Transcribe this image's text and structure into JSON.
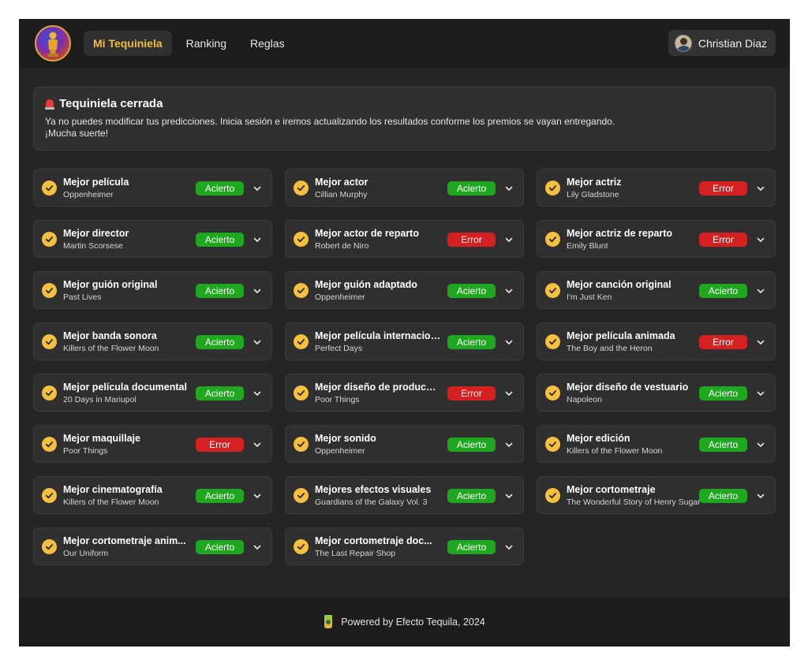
{
  "header": {
    "nav": [
      {
        "label": "Mi Tequiniela",
        "active": true
      },
      {
        "label": "Ranking",
        "active": false
      },
      {
        "label": "Reglas",
        "active": false
      }
    ],
    "user_name": "Christian Diaz"
  },
  "alert": {
    "title": "Tequiniela cerrada",
    "text": "Ya no puedes modificar tus predicciones. Inicia sesión e iremos actualizando los resultados conforme los premios se vayan entregando. ¡Mucha suerte!"
  },
  "categories": [
    {
      "title": "Mejor película",
      "pick": "Oppenheimer",
      "result": "Acierto"
    },
    {
      "title": "Mejor actor",
      "pick": "Cillian Murphy",
      "result": "Acierto"
    },
    {
      "title": "Mejor actriz",
      "pick": "Lily Gladstone",
      "result": "Error"
    },
    {
      "title": "Mejor director",
      "pick": "Martin Scorsese",
      "result": "Acierto"
    },
    {
      "title": "Mejor actor de reparto",
      "pick": "Robert de Niro",
      "result": "Error"
    },
    {
      "title": "Mejor actriz de reparto",
      "pick": "Emily Blunt",
      "result": "Error"
    },
    {
      "title": "Mejor guión original",
      "pick": "Past Lives",
      "result": "Acierto"
    },
    {
      "title": "Mejor guión adaptado",
      "pick": "Oppenheimer",
      "result": "Acierto"
    },
    {
      "title": "Mejor canción original",
      "pick": "I'm Just Ken",
      "result": "Acierto"
    },
    {
      "title": "Mejor banda sonora",
      "pick": "Killers of the Flower Moon",
      "result": "Acierto"
    },
    {
      "title": "Mejor película internacional",
      "pick": "Perfect Days",
      "result": "Acierto"
    },
    {
      "title": "Mejor película animada",
      "pick": "The Boy and the Heron",
      "result": "Error"
    },
    {
      "title": "Mejor película documental",
      "pick": "20 Days in Mariupol",
      "result": "Acierto"
    },
    {
      "title": "Mejor diseño de producción",
      "pick": "Poor Things",
      "result": "Error"
    },
    {
      "title": "Mejor diseño de vestuario",
      "pick": "Napoleon",
      "result": "Acierto"
    },
    {
      "title": "Mejor maquillaje",
      "pick": "Poor Things",
      "result": "Error"
    },
    {
      "title": "Mejor sonido",
      "pick": "Oppenheimer",
      "result": "Acierto"
    },
    {
      "title": "Mejor edición",
      "pick": "Killers of the Flower Moon",
      "result": "Acierto"
    },
    {
      "title": "Mejor cinematografía",
      "pick": "Killers of the Flower Moon",
      "result": "Acierto"
    },
    {
      "title": "Mejores efectos visuales",
      "pick": "Guardians of the Galaxy Vol. 3",
      "result": "Acierto"
    },
    {
      "title": "Mejor cortometraje",
      "pick": "The Wonderful Story of Henry Sugar",
      "result": "Acierto"
    },
    {
      "title": "Mejor cortometraje anim...",
      "pick": "Our Uniform",
      "result": "Acierto"
    },
    {
      "title": "Mejor cortometraje doc...",
      "pick": "The Last Repair Shop",
      "result": "Acierto"
    }
  ],
  "footer": {
    "text": "Powered by Efecto Tequila, 2024"
  },
  "colors": {
    "accent": "#f2bb38",
    "acierto": "#1fa81f",
    "error": "#d42020"
  },
  "icons": {
    "logo": "oscar-statue-logo",
    "alert": "alarm-light-icon",
    "check": "check-circle-icon",
    "chevron": "chevron-down-icon",
    "footer": "tequila-bottle-icon"
  }
}
